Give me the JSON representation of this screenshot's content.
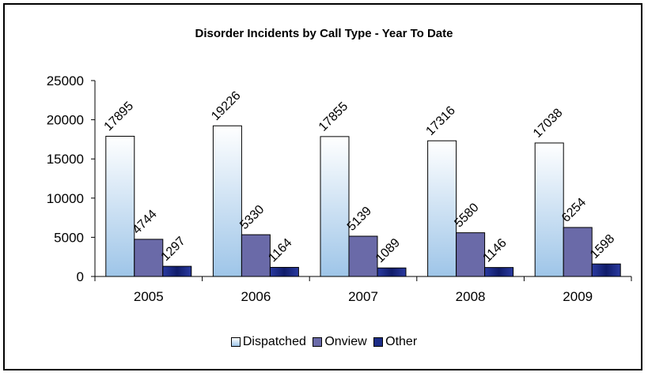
{
  "chart_data": {
    "type": "bar",
    "title": "Disorder Incidents by Call Type - Year To Date",
    "categories": [
      "2005",
      "2006",
      "2007",
      "2008",
      "2009"
    ],
    "series": [
      {
        "name": "Dispatched",
        "values": [
          17895,
          19226,
          17855,
          17316,
          17038
        ],
        "color": "#dbeaf8"
      },
      {
        "name": "Onview",
        "values": [
          4744,
          5330,
          5139,
          5580,
          6254
        ],
        "color": "#6a6aa8"
      },
      {
        "name": "Other",
        "values": [
          1297,
          1164,
          1089,
          1146,
          1598
        ],
        "color": "#1c2c86"
      }
    ],
    "yticks": [
      "0",
      "5000",
      "10000",
      "15000",
      "20000",
      "25000"
    ],
    "ylim": [
      0,
      25000
    ],
    "grid": false,
    "legend_position": "bottom"
  }
}
